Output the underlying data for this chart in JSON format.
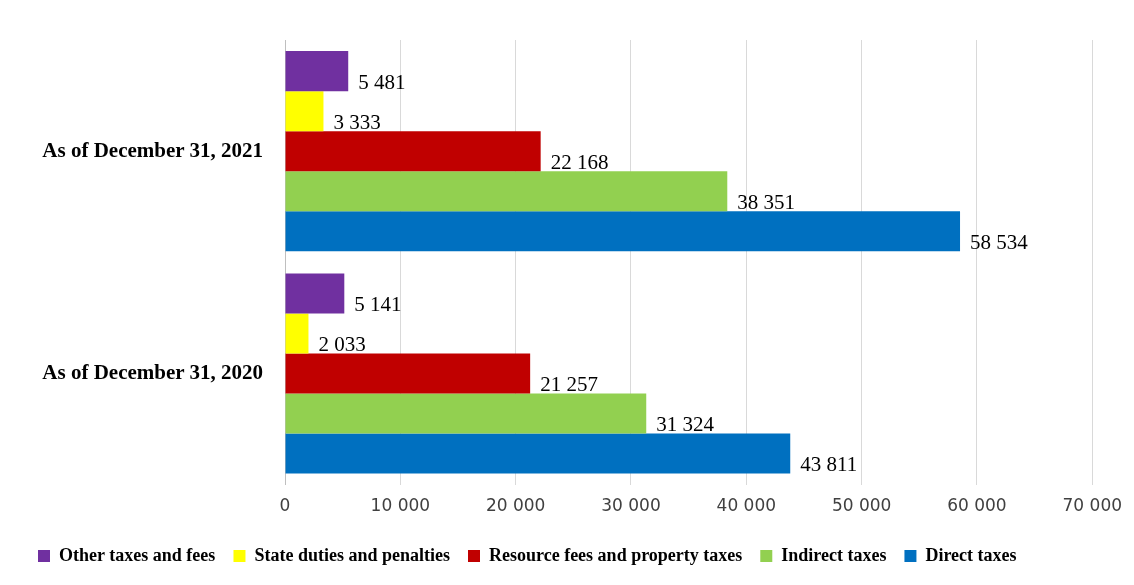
{
  "chart_data": {
    "type": "bar",
    "orientation": "horizontal",
    "categories": [
      "As of December 31, 2021",
      "As of December 31, 2020"
    ],
    "series": [
      {
        "name": "Other taxes and fees",
        "color": "#7030a0",
        "values": [
          5481,
          5141
        ],
        "value_labels": [
          "5 481",
          "5 141"
        ]
      },
      {
        "name": "State duties and penalties",
        "color": "#ffff00",
        "values": [
          3333,
          2033
        ],
        "value_labels": [
          "3 333",
          "2 033"
        ]
      },
      {
        "name": "Resource fees and property taxes",
        "color": "#c00000",
        "values": [
          22168,
          21257
        ],
        "value_labels": [
          "22 168",
          "21 257"
        ]
      },
      {
        "name": "Indirect taxes",
        "color": "#92d050",
        "values": [
          38351,
          31324
        ],
        "value_labels": [
          "38 351",
          "31 324"
        ]
      },
      {
        "name": "Direct taxes",
        "color": "#0070c0",
        "values": [
          58534,
          43811
        ],
        "value_labels": [
          "58 534",
          "43 811"
        ]
      }
    ],
    "xlim": [
      0,
      70000
    ],
    "xticks": [
      0,
      {
        "value": 10000,
        "label": "10 000"
      },
      {
        "value": 20000,
        "label": "20 000"
      },
      {
        "value": 30000,
        "label": "30 000"
      },
      {
        "value": 40000,
        "label": "40 000"
      },
      {
        "value": 50000,
        "label": "50 000"
      },
      {
        "value": 60000,
        "label": "60 000"
      },
      {
        "value": 70000,
        "label": "70 000"
      }
    ],
    "grid": "x",
    "legend": "bottom"
  }
}
